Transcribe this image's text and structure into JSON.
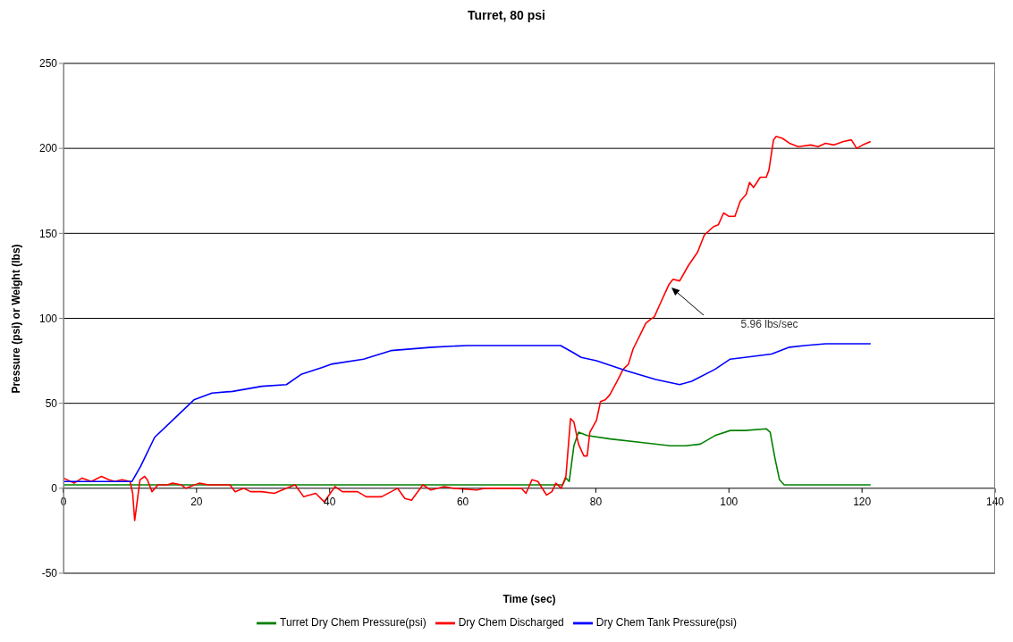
{
  "chart_data": {
    "type": "line",
    "title": "Turret, 80 psi",
    "xlabel": "Time (sec)",
    "ylabel": "Pressure (psi) or Weight (lbs)",
    "xlim": [
      0,
      140
    ],
    "xticks": [
      0,
      20,
      40,
      60,
      80,
      100,
      120,
      140
    ],
    "ylim": [
      -50,
      250
    ],
    "yticks": [
      -50,
      0,
      50,
      100,
      150,
      200,
      250
    ],
    "grid": "y",
    "legend": "bottom",
    "marker": "none",
    "annotations": [
      "5.96 lbs/sec"
    ],
    "series": [
      {
        "name": "Turret Dry Chem Pressure(psi)",
        "color": "#008000",
        "x": [
          0,
          75,
          75.5,
          76,
          76.7,
          77.4,
          78.7,
          82.2,
          86.8,
          91.2,
          93.5,
          95.7,
          97.9,
          100.2,
          102.4,
          105.6,
          106.2,
          106.9,
          107.6,
          108.3,
          121.3
        ],
        "values": [
          2,
          2,
          6,
          4,
          25,
          33,
          31,
          29,
          27,
          25,
          25,
          26,
          31,
          34,
          34,
          35,
          33,
          18,
          5,
          2,
          2
        ]
      },
      {
        "name": "Dry Chem Discharged",
        "color": "#ff0000",
        "x": [
          0,
          1.6,
          2.8,
          4.2,
          5.7,
          6.8,
          7.7,
          8.8,
          10,
          10.4,
          10.7,
          11,
          11.5,
          12.2,
          12.6,
          13.3,
          14.2,
          15.6,
          16.4,
          17.7,
          18.4,
          20.4,
          21.8,
          25,
          25.8,
          27.1,
          28.1,
          29.8,
          31.7,
          33.5,
          34.8,
          36.1,
          37.9,
          39.2,
          40.8,
          41.9,
          44.2,
          45.5,
          47.8,
          50.2,
          51.3,
          52.3,
          54,
          55.2,
          57.2,
          58.6,
          62.1,
          63.4,
          66.1,
          68.8,
          69.5,
          70.4,
          71.3,
          72.6,
          73.4,
          74,
          74.8,
          75.5,
          76.2,
          76.7,
          77.4,
          78.2,
          78.7,
          79.1,
          80.1,
          80.7,
          81.4,
          82.1,
          83.2,
          84.1,
          84.9,
          85.6,
          86.5,
          87.5,
          88.1,
          88.8,
          89.6,
          91,
          91.6,
          92.6,
          93.9,
          95.3,
          96.3,
          97.7,
          98.4,
          99.2,
          100,
          100.9,
          101.7,
          102.6,
          103.1,
          103.7,
          104.7,
          105.6,
          106,
          106.7,
          107.1,
          108,
          109.1,
          110.4,
          112.3,
          113.4,
          114.5,
          115.8,
          117.2,
          118.4,
          119.2,
          120.1,
          121.3
        ],
        "values": [
          6,
          3,
          6,
          4,
          7,
          5,
          4,
          5,
          4,
          -3,
          -19,
          -10,
          5,
          7,
          5,
          -2,
          2,
          2,
          3,
          2,
          0,
          3,
          2,
          2,
          -2,
          0,
          -2,
          -2,
          -3,
          0,
          2,
          -5,
          -3,
          -8,
          1,
          -2,
          -2,
          -5,
          -5,
          0,
          -6,
          -7,
          2,
          -1,
          1,
          0,
          -1,
          0,
          0,
          0,
          -3,
          5,
          4,
          -4,
          -2,
          3,
          0,
          7,
          41,
          39,
          26,
          19,
          19,
          33,
          40,
          51,
          52,
          55,
          63,
          70,
          73,
          82,
          89,
          97,
          99,
          101,
          108,
          120,
          123,
          122,
          131,
          139,
          149,
          154,
          155,
          162,
          160,
          160,
          169,
          173,
          180,
          177,
          183,
          183,
          187,
          205,
          207,
          206,
          203,
          201,
          202,
          201,
          203,
          202,
          204,
          205,
          200,
          202,
          204
        ]
      },
      {
        "name": "Dry Chem Tank Pressure(psi)",
        "color": "#0000ff",
        "x": [
          0,
          10.3,
          11.6,
          13.7,
          16.4,
          19.6,
          22.3,
          25.4,
          29.8,
          33.5,
          35.7,
          38.8,
          40.2,
          45.1,
          49.2,
          55.4,
          60.7,
          74.7,
          76.5,
          77.8,
          80.1,
          84.7,
          89,
          92.6,
          94.4,
          97.9,
          100.2,
          102.4,
          106.4,
          109.1,
          111.4,
          114.5,
          121.3
        ],
        "values": [
          4,
          4,
          13,
          30,
          40,
          52,
          56,
          57,
          60,
          61,
          67,
          71,
          73,
          76,
          81,
          83,
          84,
          84,
          80,
          77,
          75,
          69,
          64,
          61,
          63,
          70,
          76,
          77,
          79,
          83,
          84,
          85,
          85
        ]
      }
    ]
  }
}
